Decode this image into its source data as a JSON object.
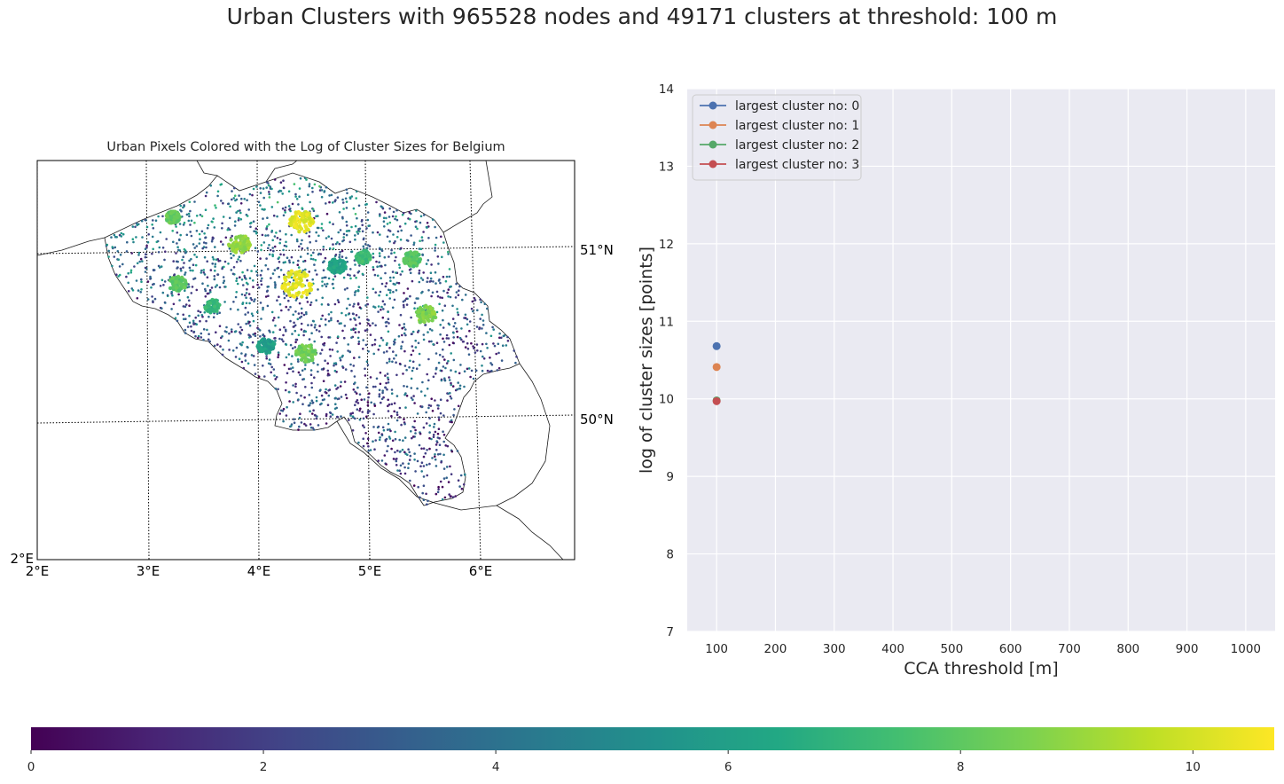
{
  "figure": {
    "title": "Urban Clusters with 965528 nodes and 49171 clusters at threshold: 100 m"
  },
  "map": {
    "title": "Urban Pixels Colored with the Log of Cluster Sizes for Belgium",
    "lon_labels": [
      "2°E",
      "3°E",
      "4°E",
      "5°E",
      "6°E"
    ],
    "lat_labels": [
      "51°N",
      "50°N"
    ],
    "corner_label": "2°E",
    "colormap": "viridis"
  },
  "chart_data": [
    {
      "type": "line",
      "xlabel": "CCA threshold [m]",
      "ylabel": "log of cluster sizes [points]",
      "xlim": [
        50,
        1050
      ],
      "ylim": [
        7,
        14
      ],
      "xticks": [
        100,
        200,
        300,
        400,
        500,
        600,
        700,
        800,
        900,
        1000
      ],
      "yticks": [
        7,
        8,
        9,
        10,
        11,
        12,
        13,
        14
      ],
      "grid": true,
      "legend_position": "top-left",
      "series": [
        {
          "name": "largest cluster no: 0",
          "color": "#4c72b0",
          "x": [
            100
          ],
          "y": [
            10.68
          ]
        },
        {
          "name": "largest cluster no: 1",
          "color": "#dd8452",
          "x": [
            100
          ],
          "y": [
            10.41
          ]
        },
        {
          "name": "largest cluster no: 2",
          "color": "#55a868",
          "x": [
            100
          ],
          "y": [
            9.98
          ]
        },
        {
          "name": "largest cluster no: 3",
          "color": "#c44e52",
          "x": [
            100
          ],
          "y": [
            9.97
          ]
        }
      ]
    },
    {
      "type": "heatmap",
      "title": "colorbar",
      "range": [
        0,
        10.7
      ],
      "ticks": [
        0,
        2,
        4,
        6,
        8,
        10
      ],
      "colormap": "viridis"
    }
  ]
}
